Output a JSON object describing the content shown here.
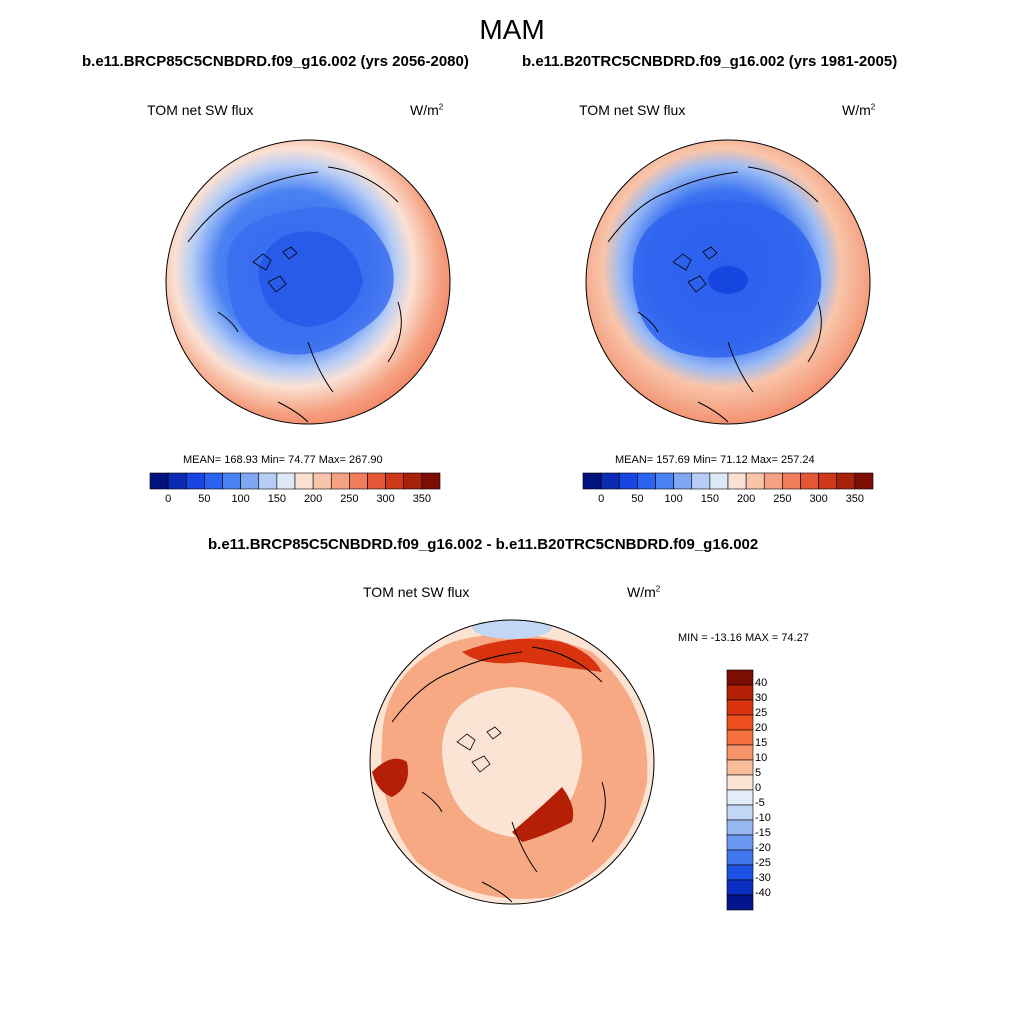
{
  "figure": {
    "title": "MAM",
    "case1_title": "b.e11.BRCP85C5CNBDRD.f09_g16.002 (yrs 2056-2080)",
    "case2_title": "b.e11.B20TRC5CNBDRD.f09_g16.002 (yrs 1981-2005)",
    "diff_title": "b.e11.BRCP85C5CNBDRD.f09_g16.002 - b.e11.B20TRC5CNBDRD.f09_g16.002"
  },
  "chart_data": [
    {
      "type": "heatmap",
      "projection": "north-polar-stereographic",
      "title": "TOM net SW flux",
      "units": "W/m",
      "units_sup": "2",
      "stats": {
        "mean": "168.93",
        "min": "74.77",
        "max": "267.90"
      },
      "stats_text": "MEAN= 168.93  Min=  74.77  Max= 267.90",
      "colorbar": {
        "levels": [
          0,
          25,
          50,
          75,
          100,
          125,
          150,
          175,
          200,
          225,
          250,
          275,
          300,
          325,
          350
        ],
        "tick_labels": [
          "0",
          "50",
          "100",
          "150",
          "200",
          "250",
          "300",
          "350"
        ],
        "colors": [
          "#00137d",
          "#0a2bb4",
          "#1746e0",
          "#2b63f0",
          "#4a82f2",
          "#7fa7f4",
          "#b6cdf6",
          "#dde9f7",
          "#fbe1d3",
          "#f8c5ab",
          "#f5a283",
          "#f07c5b",
          "#e45736",
          "#cc3818",
          "#a8220b",
          "#7c0e03"
        ]
      }
    },
    {
      "type": "heatmap",
      "projection": "north-polar-stereographic",
      "title": "TOM net SW flux",
      "units": "W/m",
      "units_sup": "2",
      "stats": {
        "mean": "157.69",
        "min": "71.12",
        "max": "257.24"
      },
      "stats_text": "MEAN= 157.69  Min=  71.12  Max= 257.24",
      "colorbar": {
        "levels": [
          0,
          25,
          50,
          75,
          100,
          125,
          150,
          175,
          200,
          225,
          250,
          275,
          300,
          325,
          350
        ],
        "tick_labels": [
          "0",
          "50",
          "100",
          "150",
          "200",
          "250",
          "300",
          "350"
        ],
        "colors": [
          "#00137d",
          "#0a2bb4",
          "#1746e0",
          "#2b63f0",
          "#4a82f2",
          "#7fa7f4",
          "#b6cdf6",
          "#dde9f7",
          "#fbe1d3",
          "#f8c5ab",
          "#f5a283",
          "#f07c5b",
          "#e45736",
          "#cc3818",
          "#a8220b",
          "#7c0e03"
        ]
      }
    },
    {
      "type": "heatmap",
      "projection": "north-polar-stereographic",
      "title": "TOM net SW flux",
      "units": "W/m",
      "units_sup": "2",
      "stats": {
        "min": "-13.16",
        "max": "74.27"
      },
      "stats_text": "MIN = -13.16 MAX =  74.27",
      "colorbar": {
        "levels": [
          40,
          30,
          25,
          20,
          15,
          10,
          5,
          0,
          -5,
          -10,
          -15,
          -20,
          -25,
          -30,
          -40
        ],
        "tick_labels": [
          "40",
          "30",
          "25",
          "20",
          "15",
          "10",
          "5",
          "0",
          "-5",
          "-10",
          "-15",
          "-20",
          "-25",
          "-30",
          "-40"
        ],
        "colors": [
          "#7c0e03",
          "#b51f06",
          "#d8330e",
          "#ef4f1f",
          "#f4713f",
          "#f6956a",
          "#f9bd9a",
          "#fbe4d4",
          "#e3edf9",
          "#c2d6f6",
          "#97b9f3",
          "#6b98f1",
          "#4176ef",
          "#1e52e6",
          "#0a2fc0",
          "#03158a"
        ]
      }
    }
  ]
}
